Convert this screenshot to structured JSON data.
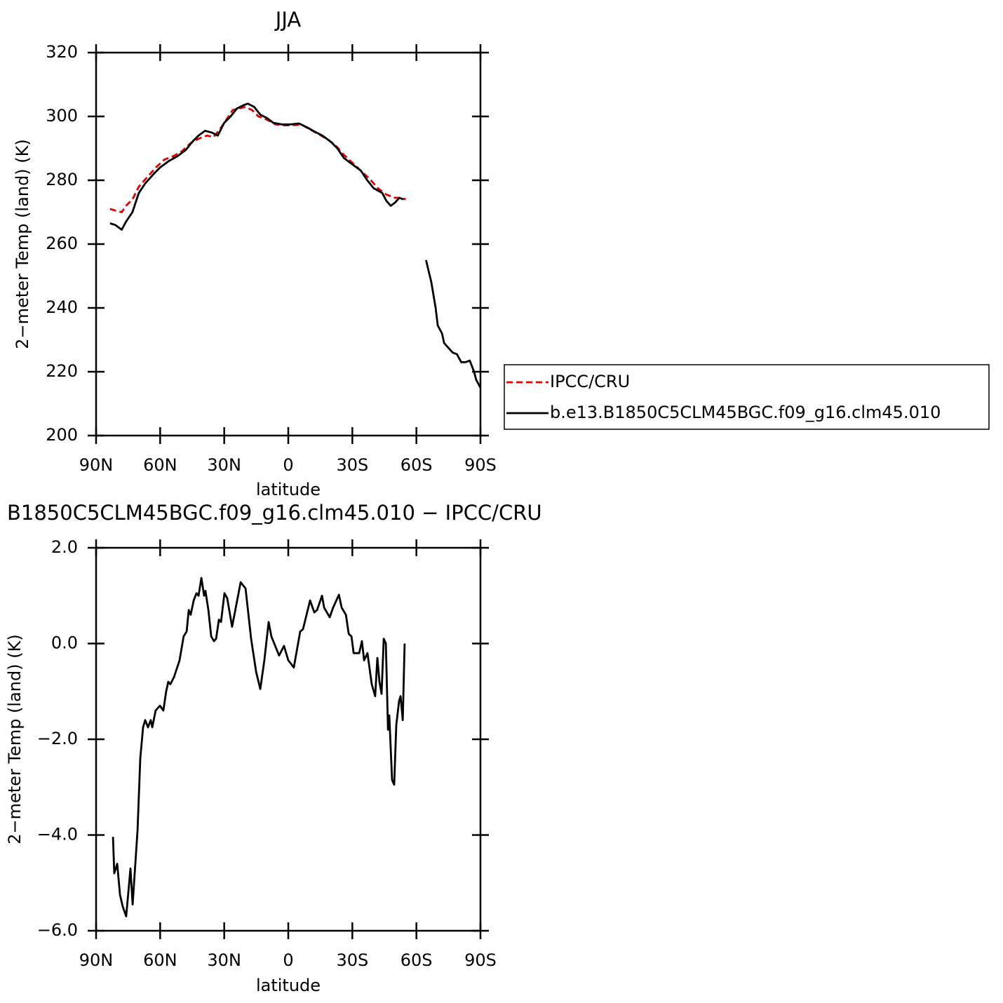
{
  "chart_data": [
    {
      "type": "line",
      "title": "JJA",
      "xlabel": "latitude",
      "ylabel": "2−meter Temp (land) (K)",
      "xlim": [
        90,
        -90
      ],
      "ylim": [
        200,
        320
      ],
      "xticks": [
        {
          "value": 90,
          "label": "90N"
        },
        {
          "value": 60,
          "label": "60N"
        },
        {
          "value": 30,
          "label": "30N"
        },
        0,
        {
          "value": -30,
          "label": "30S"
        },
        {
          "value": -60,
          "label": "60S"
        },
        {
          "value": -90,
          "label": "90S"
        }
      ],
      "yticks": [
        200,
        220,
        240,
        260,
        280,
        300,
        320
      ],
      "legend": "right",
      "series": [
        {
          "name": "IPCC/CRU",
          "color": "#e00000",
          "dashed": true,
          "x": [
            83.5,
            81,
            78,
            76,
            73,
            70,
            66,
            62,
            58,
            54,
            50,
            46,
            42,
            38,
            35,
            32,
            29,
            26,
            23,
            20,
            17,
            14,
            10,
            6,
            2,
            -2,
            -6,
            -10,
            -14,
            -18,
            -22,
            -26,
            -30,
            -34,
            -38,
            -42,
            -46,
            -50,
            -53,
            -55
          ],
          "values": [
            271,
            270.5,
            270,
            272,
            274,
            278,
            281,
            284,
            286.5,
            287.5,
            289,
            291.5,
            293,
            294,
            293.5,
            296,
            299,
            302,
            302.5,
            303,
            302,
            300,
            299,
            297.5,
            297.2,
            297.2,
            297.5,
            296,
            294.5,
            293,
            291,
            288,
            285.5,
            283,
            280.5,
            277.5,
            275.5,
            274.5,
            274.5,
            274
          ]
        },
        {
          "name": "b.e13.B1850C5CLM45BGC.f09_g16.clm45.010",
          "color": "#000000",
          "dashed": false,
          "x": [
            83.5,
            81,
            78,
            76,
            73,
            70,
            67,
            63,
            60,
            56,
            52,
            48,
            45,
            42,
            39,
            36,
            33,
            30,
            27,
            24,
            21,
            19,
            16,
            13,
            10,
            7,
            3,
            -1,
            -5,
            -9,
            -13,
            -16,
            -20,
            -23,
            -26,
            -30,
            -34,
            -37,
            -40,
            -44,
            -46,
            -48,
            -50,
            -52,
            -54,
            -60,
            -64.5,
            -67,
            -69,
            -70,
            -72,
            -73,
            -75,
            -77,
            -79,
            -81,
            -83,
            -85,
            -87,
            -88,
            -90
          ],
          "values": [
            266.5,
            266,
            264.5,
            267,
            270,
            276,
            279,
            282,
            284,
            286,
            287.5,
            289.5,
            292,
            294,
            295.5,
            295,
            294,
            298,
            300,
            302.5,
            303.5,
            304,
            303,
            300.5,
            299.5,
            298,
            297.5,
            297.5,
            297.8,
            296.5,
            295,
            294,
            292,
            290,
            287,
            285,
            283,
            280,
            277.5,
            276,
            273.5,
            272,
            273,
            274.5,
            274,
            null,
            255,
            248,
            240,
            234.5,
            232,
            229,
            227.5,
            226,
            225.5,
            223,
            223,
            223.5,
            220,
            217.5,
            215
          ]
        }
      ]
    },
    {
      "type": "line",
      "title": "B1850C5CLM45BGC.f09_g16.clm45.010 − IPCC/CRU",
      "xlabel": "latitude",
      "ylabel": "2−meter Temp (land) (K)",
      "xlim": [
        90,
        -90
      ],
      "ylim": [
        -6,
        2
      ],
      "xticks": [
        {
          "value": 90,
          "label": "90N"
        },
        {
          "value": 60,
          "label": "60N"
        },
        {
          "value": 30,
          "label": "30N"
        },
        0,
        {
          "value": -30,
          "label": "30S"
        },
        {
          "value": -60,
          "label": "60S"
        },
        {
          "value": -90,
          "label": "90S"
        }
      ],
      "yticks": [
        {
          "value": -6,
          "label": "−6.0"
        },
        {
          "value": -4,
          "label": "−4.0"
        },
        {
          "value": -2,
          "label": "−2.0"
        },
        {
          "value": 0,
          "label": "0.0"
        },
        {
          "value": 2,
          "label": "2.0"
        }
      ],
      "series": [
        {
          "color": "#000000",
          "dashed": false,
          "x": [
            82.1,
            81.5,
            80.1,
            78.8,
            77.5,
            75.9,
            73.9,
            72.9,
            70.6,
            69.3,
            68,
            67,
            65.7,
            64.4,
            63.7,
            62.1,
            60.1,
            58.5,
            57.2,
            56.2,
            55.2,
            53.5,
            50.9,
            49,
            47.6,
            46.6,
            45.7,
            44.3,
            43,
            42,
            40.7,
            39.4,
            38.8,
            37.4,
            36.1,
            34.8,
            33.8,
            32.5,
            31.5,
            29.9,
            28.6,
            26.3,
            22.3,
            20,
            17.4,
            15,
            13.1,
            11.2,
            9.2,
            7.9,
            4.3,
            2,
            0,
            -2.6,
            -5.6,
            -6.9,
            -10.2,
            -12.2,
            -13.5,
            -15.8,
            -16.8,
            -19.4,
            -21,
            -23.7,
            -25,
            -27,
            -28.3,
            -29.6,
            -30.6,
            -33.2,
            -34.5,
            -35.5,
            -37.1,
            -39.1,
            -40.7,
            -41.7,
            -42.7,
            -43.7,
            -44.7,
            -45.7,
            -46.7,
            -47.3,
            -48.6,
            -49.6,
            -50.6,
            -51.9,
            -52.6,
            -53.6,
            -54.5
          ],
          "values": [
            -4.04,
            -4.8,
            -4.6,
            -5.25,
            -5.5,
            -5.7,
            -4.7,
            -5.45,
            -3.9,
            -2.4,
            -1.75,
            -1.6,
            -1.75,
            -1.6,
            -1.75,
            -1.4,
            -1.3,
            -1.4,
            -1.0,
            -0.8,
            -0.85,
            -0.7,
            -0.35,
            0.15,
            0.25,
            0.7,
            0.6,
            0.9,
            1.05,
            1.0,
            1.37,
            1.0,
            1.1,
            0.7,
            0.15,
            0.05,
            0.1,
            0.5,
            0.45,
            1.05,
            0.95,
            0.35,
            1.28,
            1.15,
            0.1,
            -0.6,
            -0.95,
            -0.35,
            0.45,
            0.15,
            -0.25,
            -0.05,
            -0.35,
            -0.5,
            0.25,
            0.3,
            0.9,
            0.65,
            0.7,
            1.0,
            0.75,
            0.55,
            0.75,
            1.02,
            0.75,
            0.6,
            0.2,
            0.15,
            -0.2,
            -0.2,
            0.05,
            -0.35,
            -0.2,
            -0.85,
            -1.1,
            -0.3,
            -0.8,
            -1.05,
            0.1,
            0,
            -1.8,
            -1.5,
            -2.85,
            -2.95,
            -1.7,
            -1.2,
            -1.1,
            -1.6,
            0
          ]
        }
      ]
    }
  ]
}
